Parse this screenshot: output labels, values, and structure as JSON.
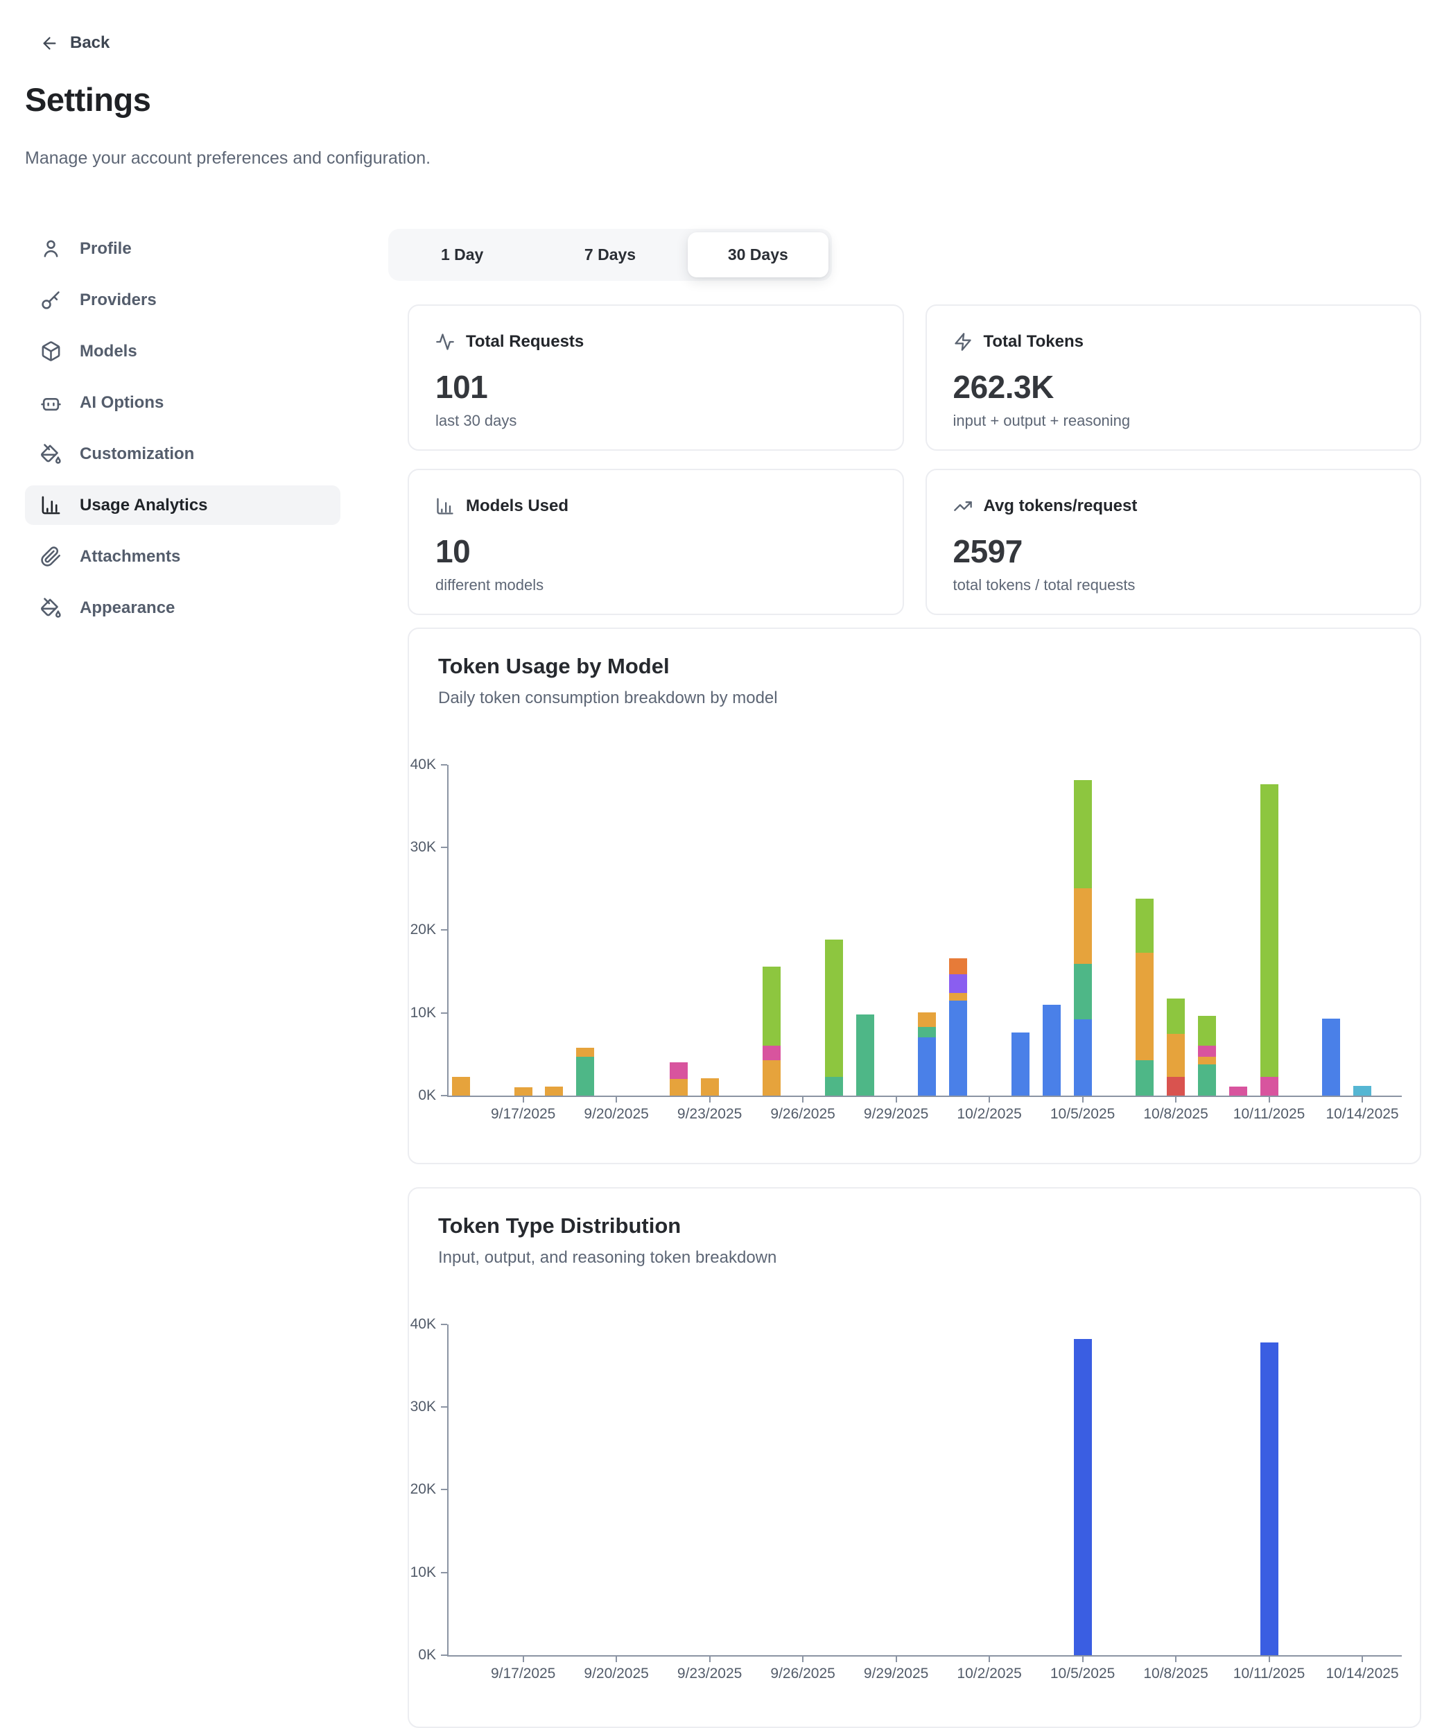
{
  "back": {
    "label": "Back",
    "icon": "arrow-left-icon"
  },
  "page": {
    "title": "Settings",
    "subtitle": "Manage your account preferences and configuration."
  },
  "sidebar": {
    "items": [
      {
        "label": "Profile",
        "icon": "user-icon",
        "active": false
      },
      {
        "label": "Providers",
        "icon": "key-icon",
        "active": false
      },
      {
        "label": "Models",
        "icon": "package-icon",
        "active": false
      },
      {
        "label": "AI Options",
        "icon": "bot-icon",
        "active": false
      },
      {
        "label": "Customization",
        "icon": "paint-bucket-icon",
        "active": false
      },
      {
        "label": "Usage Analytics",
        "icon": "bar-chart-icon",
        "active": true
      },
      {
        "label": "Attachments",
        "icon": "paperclip-icon",
        "active": false
      },
      {
        "label": "Appearance",
        "icon": "paint-bucket-icon",
        "active": false
      }
    ]
  },
  "tabs": [
    {
      "label": "1 Day",
      "active": false
    },
    {
      "label": "7 Days",
      "active": false
    },
    {
      "label": "30 Days",
      "active": true
    }
  ],
  "stats": [
    {
      "icon": "activity-icon",
      "title": "Total Requests",
      "value": "101",
      "sub": "last 30 days"
    },
    {
      "icon": "zap-icon",
      "title": "Total Tokens",
      "value": "262.3K",
      "sub": "input + output + reasoning"
    },
    {
      "icon": "bar-chart-icon",
      "title": "Models Used",
      "value": "10",
      "sub": "different models"
    },
    {
      "icon": "trending-up-icon",
      "title": "Avg tokens/request",
      "value": "2597",
      "sub": "total tokens / total requests"
    }
  ],
  "palette": {
    "blue": "#4a80e8",
    "teal": "#4eb787",
    "orange": "#e6a33c",
    "lightgreen": "#8dc63f",
    "pink": "#d8549e",
    "purple": "#8a5ef0",
    "darkorange": "#e77b38",
    "red": "#d9534f",
    "cyan": "#55b6d3",
    "royalblue": "#3a5ee2",
    "axis": "#8b94a3",
    "tick_text": "#525b69"
  },
  "chart_data": [
    {
      "type": "bar",
      "stacked": true,
      "title": "Token Usage by Model",
      "subtitle": "Daily token consumption breakdown by model",
      "ylabel": "tokens",
      "unit": "K",
      "ylim": [
        0,
        40
      ],
      "yticks": [
        "0K",
        "10K",
        "20K",
        "30K",
        "40K"
      ],
      "grid": false,
      "legend": false,
      "categories": [
        "9/15/2025",
        "9/16/2025",
        "9/17/2025",
        "9/18/2025",
        "9/19/2025",
        "9/20/2025",
        "9/21/2025",
        "9/22/2025",
        "9/23/2025",
        "9/24/2025",
        "9/25/2025",
        "9/26/2025",
        "9/27/2025",
        "9/28/2025",
        "9/29/2025",
        "9/30/2025",
        "10/1/2025",
        "10/2/2025",
        "10/3/2025",
        "10/4/2025",
        "10/5/2025",
        "10/6/2025",
        "10/7/2025",
        "10/8/2025",
        "10/9/2025",
        "10/10/2025",
        "10/11/2025",
        "10/12/2025",
        "10/13/2025",
        "10/14/2025"
      ],
      "xtick_start": 2,
      "xtick_every": 3,
      "bars": [
        {
          "date": "9/15/2025",
          "segments": [
            {
              "color": "orange",
              "value": 2.3
            }
          ]
        },
        {
          "date": "9/17/2025",
          "segments": [
            {
              "color": "orange",
              "value": 1.0
            }
          ]
        },
        {
          "date": "9/18/2025",
          "segments": [
            {
              "color": "orange",
              "value": 1.1
            }
          ]
        },
        {
          "date": "9/19/2025",
          "segments": [
            {
              "color": "teal",
              "value": 4.7
            },
            {
              "color": "orange",
              "value": 1.1
            }
          ]
        },
        {
          "date": "9/22/2025",
          "segments": [
            {
              "color": "orange",
              "value": 2.0
            },
            {
              "color": "pink",
              "value": 2.0
            }
          ]
        },
        {
          "date": "9/23/2025",
          "segments": [
            {
              "color": "orange",
              "value": 2.1
            }
          ]
        },
        {
          "date": "9/25/2025",
          "segments": [
            {
              "color": "orange",
              "value": 4.3
            },
            {
              "color": "pink",
              "value": 1.7
            },
            {
              "color": "lightgreen",
              "value": 9.6
            }
          ]
        },
        {
          "date": "9/27/2025",
          "segments": [
            {
              "color": "teal",
              "value": 2.3
            },
            {
              "color": "lightgreen",
              "value": 16.6
            }
          ]
        },
        {
          "date": "9/28/2025",
          "segments": [
            {
              "color": "teal",
              "value": 9.8
            }
          ]
        },
        {
          "date": "9/30/2025",
          "segments": [
            {
              "color": "blue",
              "value": 7.0
            },
            {
              "color": "teal",
              "value": 1.3
            },
            {
              "color": "orange",
              "value": 1.8
            }
          ]
        },
        {
          "date": "10/1/2025",
          "segments": [
            {
              "color": "blue",
              "value": 11.5
            },
            {
              "color": "orange",
              "value": 0.9
            },
            {
              "color": "purple",
              "value": 2.3
            },
            {
              "color": "darkorange",
              "value": 1.9
            }
          ]
        },
        {
          "date": "10/3/2025",
          "segments": [
            {
              "color": "blue",
              "value": 7.6
            }
          ]
        },
        {
          "date": "10/4/2025",
          "segments": [
            {
              "color": "blue",
              "value": 11.0
            }
          ]
        },
        {
          "date": "10/5/2025",
          "segments": [
            {
              "color": "blue",
              "value": 9.2
            },
            {
              "color": "teal",
              "value": 6.7
            },
            {
              "color": "orange",
              "value": 9.2
            },
            {
              "color": "lightgreen",
              "value": 13.0
            }
          ]
        },
        {
          "date": "10/7/2025",
          "segments": [
            {
              "color": "teal",
              "value": 4.3
            },
            {
              "color": "orange",
              "value": 13.0
            },
            {
              "color": "lightgreen",
              "value": 6.5
            }
          ]
        },
        {
          "date": "10/8/2025",
          "segments": [
            {
              "color": "red",
              "value": 2.3
            },
            {
              "color": "orange",
              "value": 5.2
            },
            {
              "color": "lightgreen",
              "value": 4.2
            }
          ]
        },
        {
          "date": "10/9/2025",
          "segments": [
            {
              "color": "teal",
              "value": 3.8
            },
            {
              "color": "orange",
              "value": 0.9
            },
            {
              "color": "pink",
              "value": 1.3
            },
            {
              "color": "lightgreen",
              "value": 3.6
            }
          ]
        },
        {
          "date": "10/10/2025",
          "segments": [
            {
              "color": "pink",
              "value": 1.1
            }
          ]
        },
        {
          "date": "10/11/2025",
          "segments": [
            {
              "color": "pink",
              "value": 2.3
            },
            {
              "color": "lightgreen",
              "value": 35.3
            }
          ]
        },
        {
          "date": "10/13/2025",
          "segments": [
            {
              "color": "blue",
              "value": 9.3
            }
          ]
        },
        {
          "date": "10/14/2025",
          "segments": [
            {
              "color": "cyan",
              "value": 1.2
            }
          ]
        }
      ]
    },
    {
      "type": "bar",
      "stacked": true,
      "title": "Token Type Distribution",
      "subtitle": "Input, output, and reasoning token breakdown",
      "ylabel": "tokens",
      "unit": "K",
      "ylim": [
        0,
        40
      ],
      "yticks": [
        "0K",
        "10K",
        "20K",
        "30K",
        "40K"
      ],
      "grid": false,
      "legend": false,
      "categories": [
        "9/15/2025",
        "9/16/2025",
        "9/17/2025",
        "9/18/2025",
        "9/19/2025",
        "9/20/2025",
        "9/21/2025",
        "9/22/2025",
        "9/23/2025",
        "9/24/2025",
        "9/25/2025",
        "9/26/2025",
        "9/27/2025",
        "9/28/2025",
        "9/29/2025",
        "9/30/2025",
        "10/1/2025",
        "10/2/2025",
        "10/3/2025",
        "10/4/2025",
        "10/5/2025",
        "10/6/2025",
        "10/7/2025",
        "10/8/2025",
        "10/9/2025",
        "10/10/2025",
        "10/11/2025",
        "10/12/2025",
        "10/13/2025",
        "10/14/2025"
      ],
      "xtick_start": 2,
      "xtick_every": 3,
      "bars": [
        {
          "date": "10/5/2025",
          "segments": [
            {
              "color": "royalblue",
              "value": 38.2
            }
          ]
        },
        {
          "date": "10/11/2025",
          "segments": [
            {
              "color": "royalblue",
              "value": 37.8
            }
          ]
        }
      ]
    }
  ]
}
